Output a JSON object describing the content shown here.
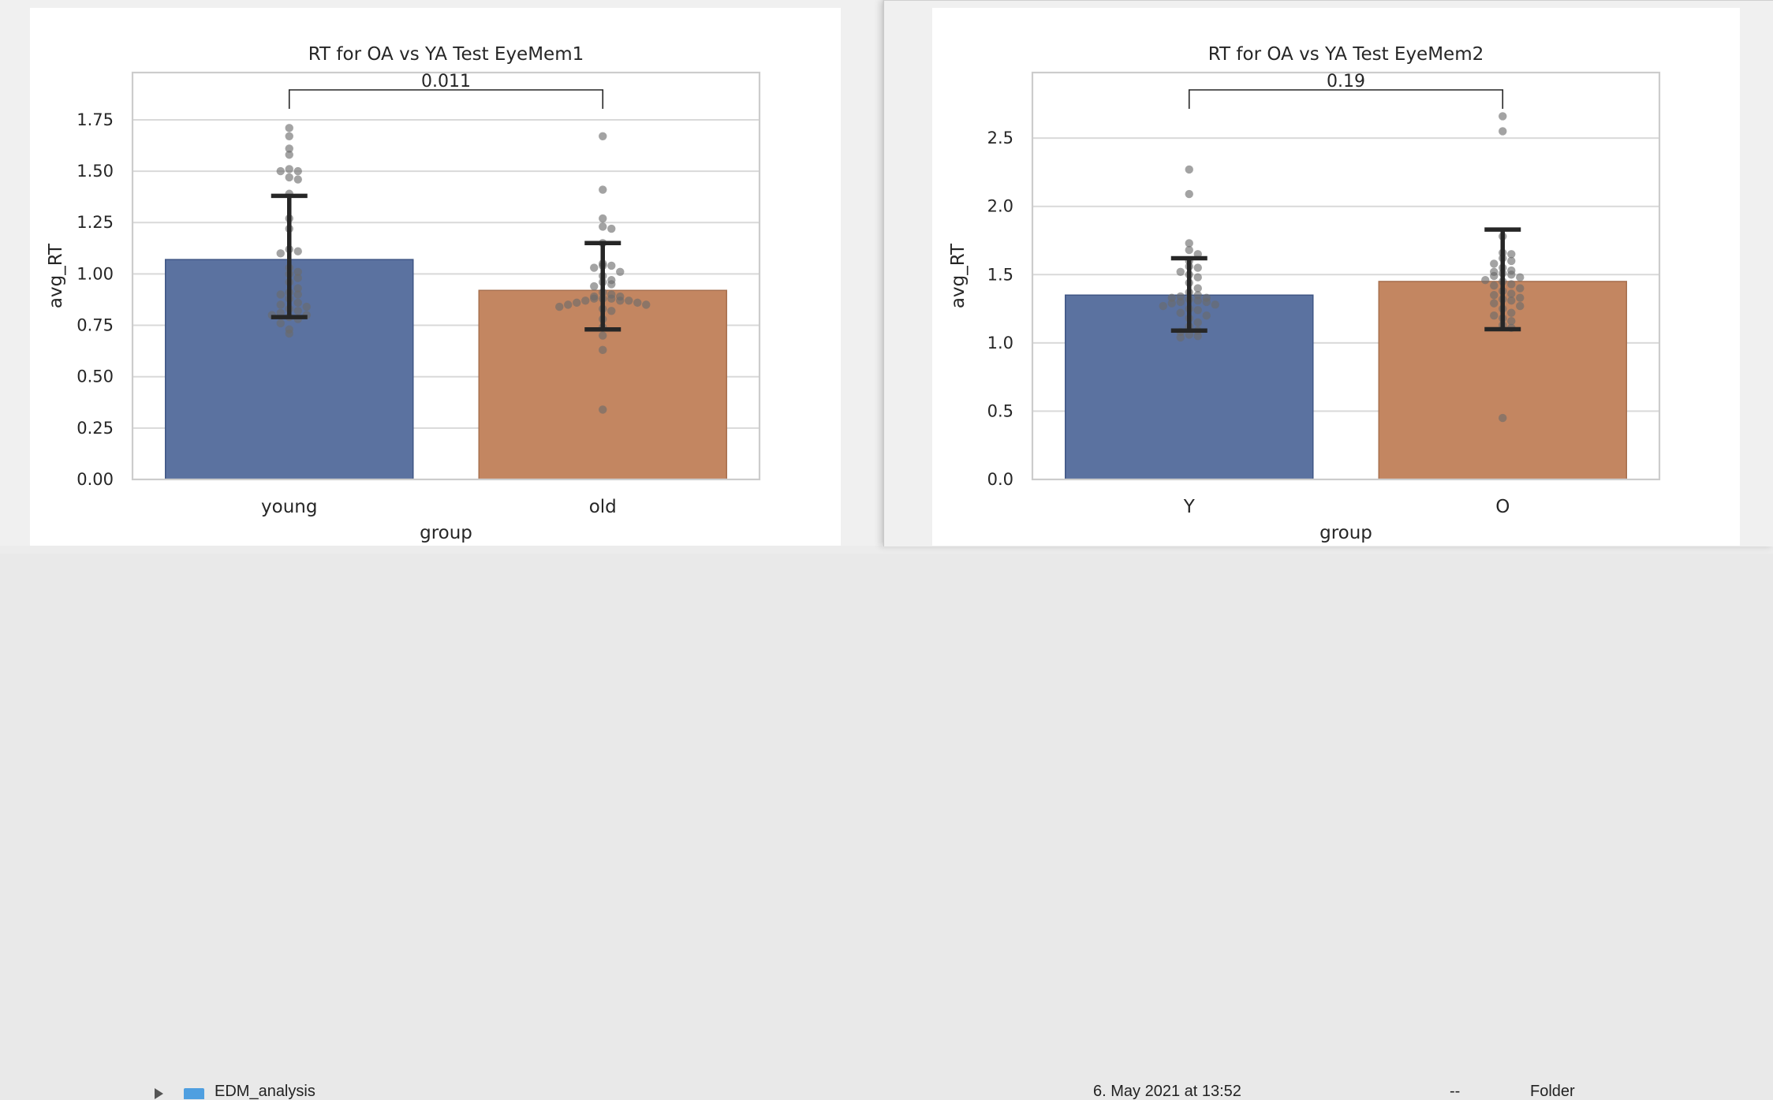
{
  "finder": {
    "folder_name": "EDM_analysis",
    "modified": "6. May 2021 at 13:52",
    "size": "--",
    "kind": "Folder"
  },
  "chart_data": [
    {
      "type": "bar",
      "title": "RT for OA vs YA Test EyeMem1",
      "xlabel": "group",
      "ylabel": "avg_RT",
      "ylim": [
        0,
        1.98
      ],
      "yticks": [
        "0.00",
        "0.25",
        "0.50",
        "0.75",
        "1.00",
        "1.25",
        "1.50",
        "1.75"
      ],
      "categories": [
        "young",
        "old"
      ],
      "values": [
        1.07,
        0.92
      ],
      "error_bars": [
        [
          0.79,
          1.38
        ],
        [
          0.73,
          1.15
        ]
      ],
      "colors": [
        "#5b72a0",
        "#c38661"
      ],
      "significance": "0.011",
      "grid": true,
      "points": [
        [
          1.71,
          1.67,
          1.61,
          1.58,
          1.51,
          1.5,
          1.5,
          1.47,
          1.46,
          1.39,
          1.27,
          1.22,
          1.12,
          1.11,
          1.1,
          1.03,
          1.01,
          1.0,
          0.98,
          0.96,
          0.93,
          0.91,
          0.9,
          0.9,
          0.88,
          0.86,
          0.85,
          0.84,
          0.83,
          0.82,
          0.81,
          0.8,
          0.8,
          0.79,
          0.78,
          0.76,
          0.73,
          0.71
        ],
        [
          1.67,
          1.41,
          1.27,
          1.23,
          1.22,
          1.15,
          1.05,
          1.04,
          1.04,
          1.03,
          1.01,
          0.99,
          0.97,
          0.96,
          0.95,
          0.94,
          0.91,
          0.9,
          0.89,
          0.89,
          0.88,
          0.88,
          0.88,
          0.87,
          0.87,
          0.87,
          0.86,
          0.86,
          0.85,
          0.85,
          0.84,
          0.83,
          0.82,
          0.78,
          0.74,
          0.7,
          0.63,
          0.34
        ]
      ]
    },
    {
      "type": "bar",
      "title": "RT for OA vs YA Test EyeMem2",
      "xlabel": "group",
      "ylabel": "avg_RT",
      "ylim": [
        0,
        2.98
      ],
      "yticks": [
        "0.0",
        "0.5",
        "1.0",
        "1.5",
        "2.0",
        "2.5"
      ],
      "categories": [
        "Y",
        "O"
      ],
      "values": [
        1.35,
        1.45
      ],
      "error_bars": [
        [
          1.09,
          1.62
        ],
        [
          1.1,
          1.83
        ]
      ],
      "colors": [
        "#5b72a0",
        "#c38661"
      ],
      "significance": "0.19",
      "grid": true,
      "points": [
        [
          2.27,
          2.09,
          1.73,
          1.68,
          1.65,
          1.6,
          1.56,
          1.55,
          1.52,
          1.5,
          1.48,
          1.44,
          1.4,
          1.37,
          1.35,
          1.34,
          1.33,
          1.33,
          1.32,
          1.31,
          1.3,
          1.3,
          1.29,
          1.28,
          1.27,
          1.25,
          1.24,
          1.22,
          1.2,
          1.18,
          1.15,
          1.12,
          1.09,
          1.08,
          1.06,
          1.05,
          1.04
        ],
        [
          2.66,
          2.55,
          1.78,
          1.66,
          1.65,
          1.62,
          1.6,
          1.58,
          1.55,
          1.53,
          1.52,
          1.51,
          1.5,
          1.49,
          1.48,
          1.46,
          1.45,
          1.43,
          1.42,
          1.4,
          1.38,
          1.36,
          1.35,
          1.33,
          1.32,
          1.31,
          1.29,
          1.27,
          1.25,
          1.22,
          1.2,
          1.18,
          1.16,
          1.13,
          1.11,
          0.45
        ]
      ]
    }
  ]
}
